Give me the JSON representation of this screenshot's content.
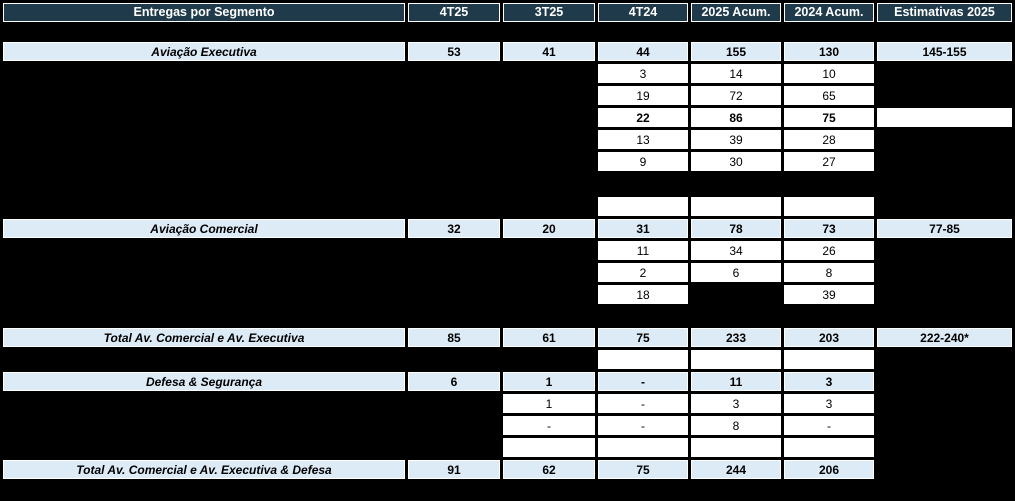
{
  "colors": {
    "background": "#000000",
    "header_bg": "#1F3A4B",
    "header_text": "#FFFFFF",
    "segment_bg": "#DDEBF7",
    "detail_bg": "#FFFFFF",
    "cell_text": "#000000",
    "cell_border": "#FFFFFF"
  },
  "table": {
    "title": "Entregas por Segmento",
    "columns": [
      "4T25",
      "3T25",
      "4T24",
      "2025 Acum.",
      "2024 Acum.",
      "Estimativas 2025"
    ],
    "rows": [
      {
        "id": "aviacao-executiva",
        "style": "segment",
        "label": "Aviação Executiva",
        "values": [
          "53",
          "41",
          "44",
          "155",
          "130",
          "145-155"
        ]
      },
      {
        "id": "executiva-sub-1",
        "style": "detail",
        "label": null,
        "values": [
          null,
          null,
          "3",
          "14",
          "10",
          null
        ]
      },
      {
        "id": "executiva-sub-2",
        "style": "detail",
        "label": null,
        "values": [
          null,
          null,
          "19",
          "72",
          "65",
          null
        ]
      },
      {
        "id": "executiva-sub-3",
        "style": "detail-bold",
        "label": null,
        "values": [
          null,
          null,
          "22",
          "86",
          "75",
          ""
        ]
      },
      {
        "id": "executiva-sub-4",
        "style": "detail",
        "label": null,
        "values": [
          null,
          null,
          "13",
          "39",
          "28",
          null
        ]
      },
      {
        "id": "executiva-sub-5",
        "style": "detail",
        "label": null,
        "values": [
          null,
          null,
          "9",
          "30",
          "27",
          null
        ]
      },
      {
        "id": "empty-row-1",
        "style": "detail",
        "label": null,
        "values": [
          null,
          null,
          "",
          "",
          "",
          null
        ]
      },
      {
        "id": "aviacao-comercial",
        "style": "segment",
        "label": "Aviação Comercial",
        "values": [
          "32",
          "20",
          "31",
          "78",
          "73",
          "77-85"
        ]
      },
      {
        "id": "comercial-sub-1",
        "style": "detail",
        "label": null,
        "values": [
          null,
          null,
          "11",
          "34",
          "26",
          null
        ]
      },
      {
        "id": "comercial-sub-2",
        "style": "detail",
        "label": null,
        "values": [
          null,
          null,
          "2",
          "6",
          "8",
          null
        ]
      },
      {
        "id": "comercial-sub-3",
        "style": "detail",
        "label": null,
        "values": [
          null,
          null,
          "18",
          null,
          "39",
          null
        ]
      },
      {
        "id": "total-comercial-executiva",
        "style": "segment",
        "label": "Total Av. Comercial e Av. Executiva",
        "values": [
          "85",
          "61",
          "75",
          "233",
          "203",
          "222-240*"
        ]
      },
      {
        "id": "empty-row-2",
        "style": "detail",
        "label": null,
        "values": [
          null,
          null,
          "",
          "",
          "",
          null
        ]
      },
      {
        "id": "defesa-seguranca",
        "style": "segment",
        "label": "Defesa & Segurança",
        "values": [
          "6",
          "1",
          "-",
          "11",
          "3",
          null
        ]
      },
      {
        "id": "defesa-sub-1",
        "style": "detail",
        "label": null,
        "values": [
          null,
          "1",
          "-",
          "3",
          "3",
          null
        ]
      },
      {
        "id": "defesa-sub-2",
        "style": "detail",
        "label": null,
        "values": [
          null,
          "-",
          "-",
          "8",
          "-",
          null
        ]
      },
      {
        "id": "empty-row-3",
        "style": "detail",
        "label": null,
        "values": [
          null,
          "",
          "",
          "",
          "",
          null
        ]
      },
      {
        "id": "total-comercial-executiva-defesa",
        "style": "segment",
        "label": "Total Av. Comercial e Av. Executiva & Defesa",
        "values": [
          "91",
          "62",
          "75",
          "244",
          "206",
          null
        ]
      }
    ]
  }
}
